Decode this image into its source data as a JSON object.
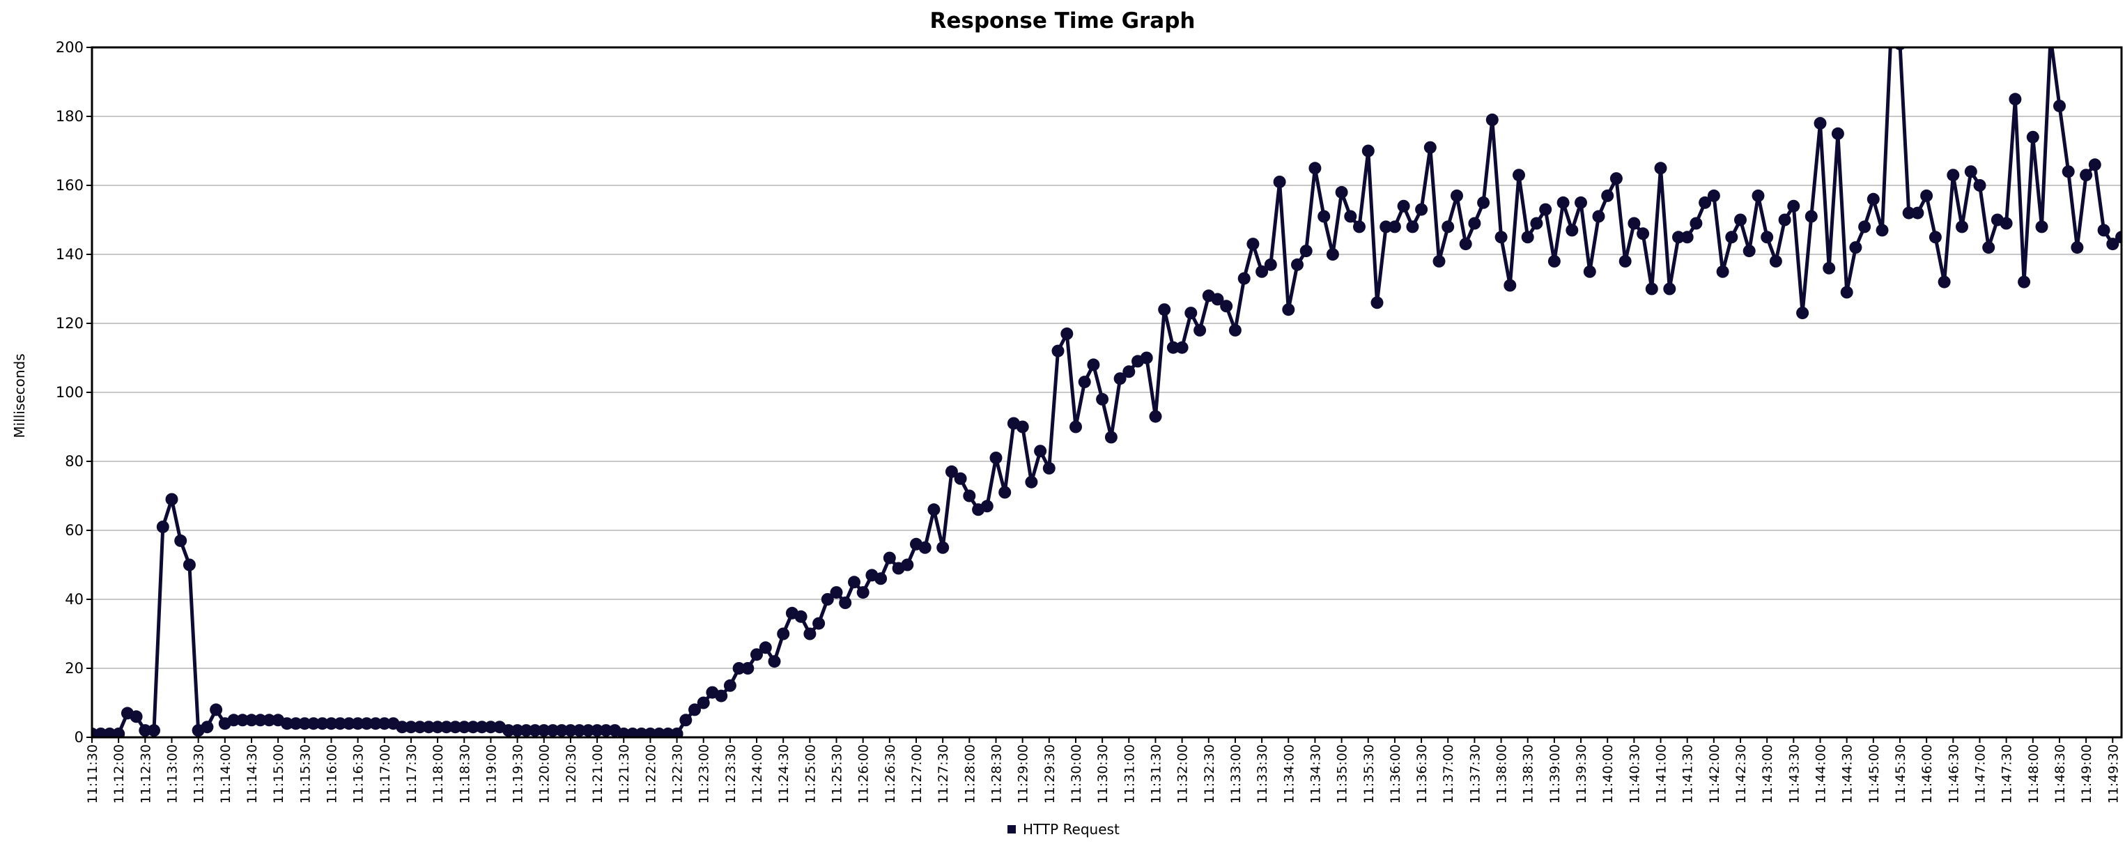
{
  "chart_data": {
    "type": "line",
    "title": "Response Time Graph",
    "xlabel": "",
    "ylabel": "Milliseconds",
    "ylim": [
      0,
      200
    ],
    "yticks": [
      0,
      20,
      40,
      60,
      80,
      100,
      120,
      140,
      160,
      180,
      200
    ],
    "grid": "horizontal",
    "legend_position": "bottom-center",
    "line_color": "#0d0b33",
    "x_tick_labels": [
      "11:11:30",
      "11:12:00",
      "11:12:30",
      "11:13:00",
      "11:13:30",
      "11:14:00",
      "11:14:30",
      "11:15:00",
      "11:15:30",
      "11:16:00",
      "11:16:30",
      "11:17:00",
      "11:17:30",
      "11:18:00",
      "11:18:30",
      "11:19:00",
      "11:19:30",
      "11:20:00",
      "11:20:30",
      "11:21:00",
      "11:21:30",
      "11:22:00",
      "11:22:30",
      "11:23:00",
      "11:23:30",
      "11:24:00",
      "11:24:30",
      "11:25:00",
      "11:25:30",
      "11:26:00",
      "11:26:30",
      "11:27:00",
      "11:27:30",
      "11:28:00",
      "11:28:30",
      "11:29:00",
      "11:29:30",
      "11:30:00",
      "11:30:30",
      "11:31:00",
      "11:31:30",
      "11:32:00",
      "11:32:30",
      "11:33:00",
      "11:33:30",
      "11:34:00",
      "11:34:30",
      "11:35:00",
      "11:35:30",
      "11:36:00",
      "11:36:30",
      "11:37:00",
      "11:37:30",
      "11:38:00",
      "11:38:30",
      "11:39:00",
      "11:39:30",
      "11:40:00",
      "11:40:30",
      "11:41:00",
      "11:41:30",
      "11:42:00",
      "11:42:30",
      "11:43:00",
      "11:43:30",
      "11:44:00",
      "11:44:30",
      "11:45:00",
      "11:45:30",
      "11:46:00",
      "11:46:30",
      "11:47:00",
      "11:47:30",
      "11:48:00",
      "11:48:30",
      "11:49:00",
      "11:49:30"
    ],
    "x_start": "11:11:30",
    "x_interval_seconds": 10,
    "series": [
      {
        "name": "HTTP Request",
        "values": [
          1,
          1,
          1,
          1,
          7,
          6,
          2,
          2,
          61,
          69,
          57,
          50,
          2,
          3,
          8,
          4,
          5,
          5,
          5,
          5,
          5,
          5,
          4,
          4,
          4,
          4,
          4,
          4,
          4,
          4,
          4,
          4,
          4,
          4,
          4,
          3,
          3,
          3,
          3,
          3,
          3,
          3,
          3,
          3,
          3,
          3,
          3,
          2,
          2,
          2,
          2,
          2,
          2,
          2,
          2,
          2,
          2,
          2,
          2,
          2,
          1,
          1,
          1,
          1,
          1,
          1,
          1,
          5,
          8,
          10,
          13,
          12,
          15,
          20,
          20,
          24,
          26,
          22,
          30,
          36,
          35,
          30,
          33,
          40,
          42,
          39,
          45,
          42,
          47,
          46,
          52,
          49,
          50,
          56,
          55,
          66,
          55,
          77,
          75,
          70,
          66,
          67,
          81,
          71,
          91,
          90,
          74,
          83,
          78,
          112,
          117,
          90,
          103,
          108,
          98,
          87,
          104,
          106,
          109,
          110,
          93,
          124,
          113,
          113,
          123,
          118,
          128,
          127,
          125,
          118,
          133,
          143,
          135,
          137,
          161,
          124,
          137,
          141,
          165,
          151,
          140,
          158,
          151,
          148,
          170,
          126,
          148,
          148,
          154,
          148,
          153,
          171,
          138,
          148,
          157,
          143,
          149,
          155,
          179,
          145,
          131,
          163,
          145,
          149,
          153,
          138,
          155,
          147,
          155,
          135,
          151,
          157,
          162,
          138,
          149,
          146,
          130,
          165,
          130,
          145,
          145,
          149,
          155,
          157,
          135,
          145,
          150,
          141,
          157,
          145,
          138,
          150,
          154,
          123,
          151,
          178,
          136,
          175,
          129,
          142,
          148,
          156,
          147,
          205,
          201,
          152,
          152,
          157,
          145,
          132,
          163,
          148,
          164,
          160,
          142,
          150,
          149,
          185,
          132,
          174,
          148,
          203,
          183,
          164,
          142,
          163,
          166,
          147,
          143,
          145
        ]
      }
    ]
  }
}
